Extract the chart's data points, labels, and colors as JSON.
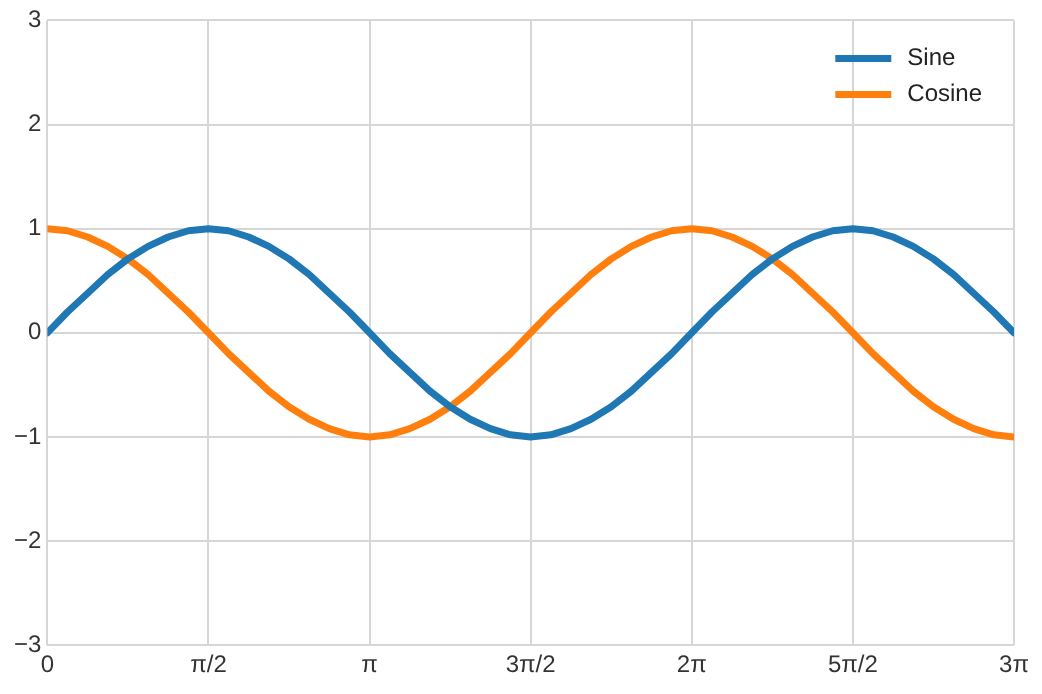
{
  "chart_data": {
    "type": "line",
    "x": [
      0,
      0.196,
      0.393,
      0.589,
      0.785,
      0.982,
      1.178,
      1.374,
      1.571,
      1.767,
      1.963,
      2.16,
      2.356,
      2.553,
      2.749,
      2.945,
      3.142,
      3.338,
      3.534,
      3.731,
      3.927,
      4.123,
      4.32,
      4.516,
      4.712,
      4.909,
      5.105,
      5.301,
      5.498,
      5.694,
      5.89,
      6.087,
      6.283,
      6.48,
      6.676,
      6.872,
      7.069,
      7.265,
      7.461,
      7.658,
      7.854,
      8.05,
      8.247,
      8.443,
      8.639,
      8.836,
      9.032,
      9.228,
      9.425
    ],
    "series": [
      {
        "name": "Sine",
        "color": "#1f77b4",
        "values": [
          0,
          0.2,
          0.38,
          0.56,
          0.71,
          0.83,
          0.92,
          0.98,
          1,
          0.98,
          0.92,
          0.83,
          0.71,
          0.56,
          0.38,
          0.2,
          0,
          -0.2,
          -0.38,
          -0.56,
          -0.71,
          -0.83,
          -0.92,
          -0.98,
          -1,
          -0.98,
          -0.92,
          -0.83,
          -0.71,
          -0.56,
          -0.38,
          -0.2,
          0,
          0.2,
          0.38,
          0.56,
          0.71,
          0.83,
          0.92,
          0.98,
          1,
          0.98,
          0.92,
          0.83,
          0.71,
          0.56,
          0.38,
          0.2,
          0
        ]
      },
      {
        "name": "Cosine",
        "color": "#ff7f0e",
        "values": [
          1,
          0.98,
          0.92,
          0.83,
          0.71,
          0.56,
          0.38,
          0.2,
          0,
          -0.2,
          -0.38,
          -0.56,
          -0.71,
          -0.83,
          -0.92,
          -0.98,
          -1,
          -0.98,
          -0.92,
          -0.83,
          -0.71,
          -0.56,
          -0.38,
          -0.2,
          0,
          0.2,
          0.38,
          0.56,
          0.71,
          0.83,
          0.92,
          0.98,
          1,
          0.98,
          0.92,
          0.83,
          0.71,
          0.56,
          0.38,
          0.2,
          0,
          -0.2,
          -0.38,
          -0.56,
          -0.71,
          -0.83,
          -0.92,
          -0.98,
          -1
        ]
      }
    ],
    "xlim": [
      0,
      9.425
    ],
    "xticks": [
      0,
      {
        "value": 1.571,
        "label": "π/2"
      },
      {
        "value": 3.142,
        "label": "π"
      },
      {
        "value": 4.712,
        "label": "3π/2"
      },
      {
        "value": 6.283,
        "label": "2π"
      },
      {
        "value": 7.854,
        "label": "5π/2"
      },
      {
        "value": 9.425,
        "label": "3π"
      }
    ],
    "ylim": [
      -3,
      3
    ],
    "yticks": [
      {
        "value": -3,
        "label": "−3"
      },
      {
        "value": -2,
        "label": "−2"
      },
      {
        "value": -1,
        "label": "−1"
      },
      0,
      1,
      2,
      3
    ],
    "grid": true,
    "legend": "top right",
    "marker": "none",
    "line_style": "solid"
  }
}
